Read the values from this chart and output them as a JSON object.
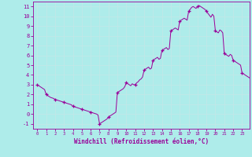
{
  "hours": [
    0,
    0.17,
    0.33,
    0.5,
    0.67,
    0.83,
    1.0,
    1.17,
    1.33,
    1.5,
    1.67,
    1.83,
    2.0,
    2.17,
    2.33,
    2.5,
    2.67,
    2.83,
    3.0,
    3.17,
    3.33,
    3.5,
    3.67,
    3.83,
    4.0,
    4.17,
    4.33,
    4.5,
    4.67,
    4.83,
    5.0,
    5.17,
    5.33,
    5.5,
    5.67,
    5.83,
    6.0,
    6.17,
    6.33,
    6.5,
    6.67,
    6.83,
    7.0,
    7.17,
    7.33,
    7.5,
    7.67,
    7.83,
    8.0,
    8.17,
    8.33,
    8.5,
    8.67,
    8.83,
    9.0,
    9.17,
    9.33,
    9.5,
    9.67,
    9.83,
    10.0,
    10.17,
    10.33,
    10.5,
    10.67,
    10.83,
    11.0,
    11.17,
    11.33,
    11.5,
    11.67,
    11.83,
    12.0,
    12.17,
    12.33,
    12.5,
    12.67,
    12.83,
    13.0,
    13.17,
    13.33,
    13.5,
    13.67,
    13.83,
    14.0,
    14.17,
    14.33,
    14.5,
    14.67,
    14.83,
    15.0,
    15.17,
    15.33,
    15.5,
    15.67,
    15.83,
    16.0,
    16.17,
    16.33,
    16.5,
    16.67,
    16.83,
    17.0,
    17.17,
    17.33,
    17.5,
    17.67,
    17.83,
    18.0,
    18.17,
    18.33,
    18.5,
    18.67,
    18.83,
    19.0,
    19.17,
    19.33,
    19.5,
    19.67,
    19.83,
    20.0,
    20.17,
    20.33,
    20.5,
    20.67,
    20.83,
    21.0,
    21.17,
    21.33,
    21.5,
    21.67,
    21.83,
    22.0,
    22.17,
    22.33,
    22.5,
    22.67,
    22.83,
    23.0,
    23.17,
    23.33,
    23.5,
    23.67,
    23.83
  ],
  "windchill": [
    3.0,
    2.9,
    2.8,
    2.7,
    2.6,
    2.5,
    2.0,
    1.9,
    1.8,
    1.7,
    1.65,
    1.6,
    1.5,
    1.45,
    1.4,
    1.35,
    1.3,
    1.25,
    1.2,
    1.15,
    1.1,
    1.05,
    1.0,
    0.95,
    0.8,
    0.75,
    0.7,
    0.65,
    0.6,
    0.55,
    0.5,
    0.45,
    0.4,
    0.35,
    0.3,
    0.25,
    0.2,
    0.15,
    0.1,
    0.05,
    0.0,
    -0.1,
    -1.0,
    -0.9,
    -0.8,
    -0.7,
    -0.6,
    -0.5,
    -0.3,
    -0.2,
    -0.1,
    0.0,
    0.1,
    0.2,
    2.2,
    2.3,
    2.4,
    2.5,
    2.6,
    2.8,
    3.2,
    3.1,
    3.0,
    2.9,
    3.1,
    3.0,
    3.0,
    3.2,
    3.3,
    3.5,
    3.6,
    3.8,
    4.5,
    4.6,
    4.7,
    4.8,
    4.6,
    4.7,
    5.5,
    5.6,
    5.7,
    5.8,
    5.6,
    5.7,
    6.5,
    6.6,
    6.7,
    6.8,
    6.6,
    6.7,
    8.5,
    8.6,
    8.7,
    8.8,
    8.7,
    8.6,
    9.5,
    9.6,
    9.7,
    9.8,
    9.7,
    9.6,
    10.5,
    10.7,
    10.9,
    11.0,
    10.9,
    10.8,
    11.0,
    11.1,
    11.0,
    10.9,
    10.8,
    10.7,
    10.5,
    10.3,
    10.1,
    9.9,
    10.2,
    10.0,
    8.5,
    8.4,
    8.3,
    8.6,
    8.5,
    8.3,
    6.2,
    6.1,
    6.0,
    5.9,
    6.1,
    6.0,
    5.5,
    5.4,
    5.3,
    5.2,
    5.1,
    5.0,
    4.2,
    4.1,
    4.0,
    3.9,
    3.8,
    3.7
  ],
  "marker_hours": [
    0,
    1,
    2,
    3,
    4,
    5,
    6,
    7,
    8,
    9,
    10,
    11,
    12,
    13,
    14,
    15,
    16,
    17,
    18,
    19,
    20,
    21,
    22,
    23
  ],
  "marker_vals": [
    3.0,
    2.0,
    1.5,
    1.2,
    0.8,
    0.5,
    0.2,
    -1.0,
    -0.3,
    2.2,
    3.2,
    3.0,
    4.5,
    5.5,
    6.5,
    8.5,
    9.5,
    10.5,
    11.0,
    10.5,
    8.5,
    6.2,
    5.5,
    4.2
  ],
  "line_color": "#990099",
  "marker_color": "#990099",
  "bg_color": "#aeecea",
  "grid_color": "#c0e8e8",
  "xlabel": "Windchill (Refroidissement éolien,°C)",
  "ylim": [
    -1.5,
    11.5
  ],
  "xlim": [
    -0.5,
    23.83
  ],
  "yticks": [
    -1,
    0,
    1,
    2,
    3,
    4,
    5,
    6,
    7,
    8,
    9,
    10,
    11
  ],
  "xticks": [
    0,
    1,
    2,
    3,
    4,
    5,
    6,
    7,
    8,
    9,
    10,
    11,
    12,
    13,
    14,
    15,
    16,
    17,
    18,
    19,
    20,
    21,
    22,
    23
  ],
  "font_color": "#990099"
}
